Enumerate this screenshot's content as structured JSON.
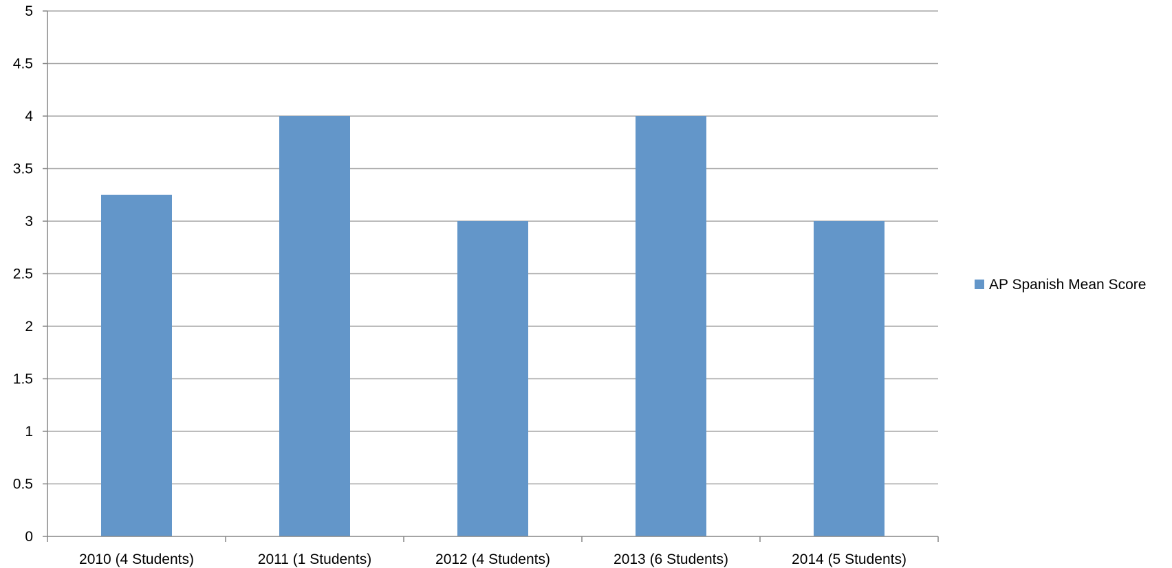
{
  "chart_data": {
    "type": "bar",
    "categories": [
      "2010 (4 Students)",
      "2011 (1 Students)",
      "2012 (4 Students)",
      "2013 (6 Students)",
      "2014 (5 Students)"
    ],
    "series": [
      {
        "name": "AP Spanish Mean Score",
        "values": [
          3.25,
          4,
          3,
          4,
          3
        ],
        "color": "#6396C9"
      }
    ],
    "title": "",
    "xlabel": "",
    "ylabel": "",
    "ylim": [
      0,
      5
    ],
    "yticks": [
      "0",
      "0.5",
      "1",
      "1.5",
      "2",
      "2.5",
      "3",
      "3.5",
      "4",
      "4.5",
      "5"
    ],
    "grid": true,
    "gridline_color": "#A6A6A6",
    "axis_color": "#868686",
    "legend_position": "right"
  }
}
